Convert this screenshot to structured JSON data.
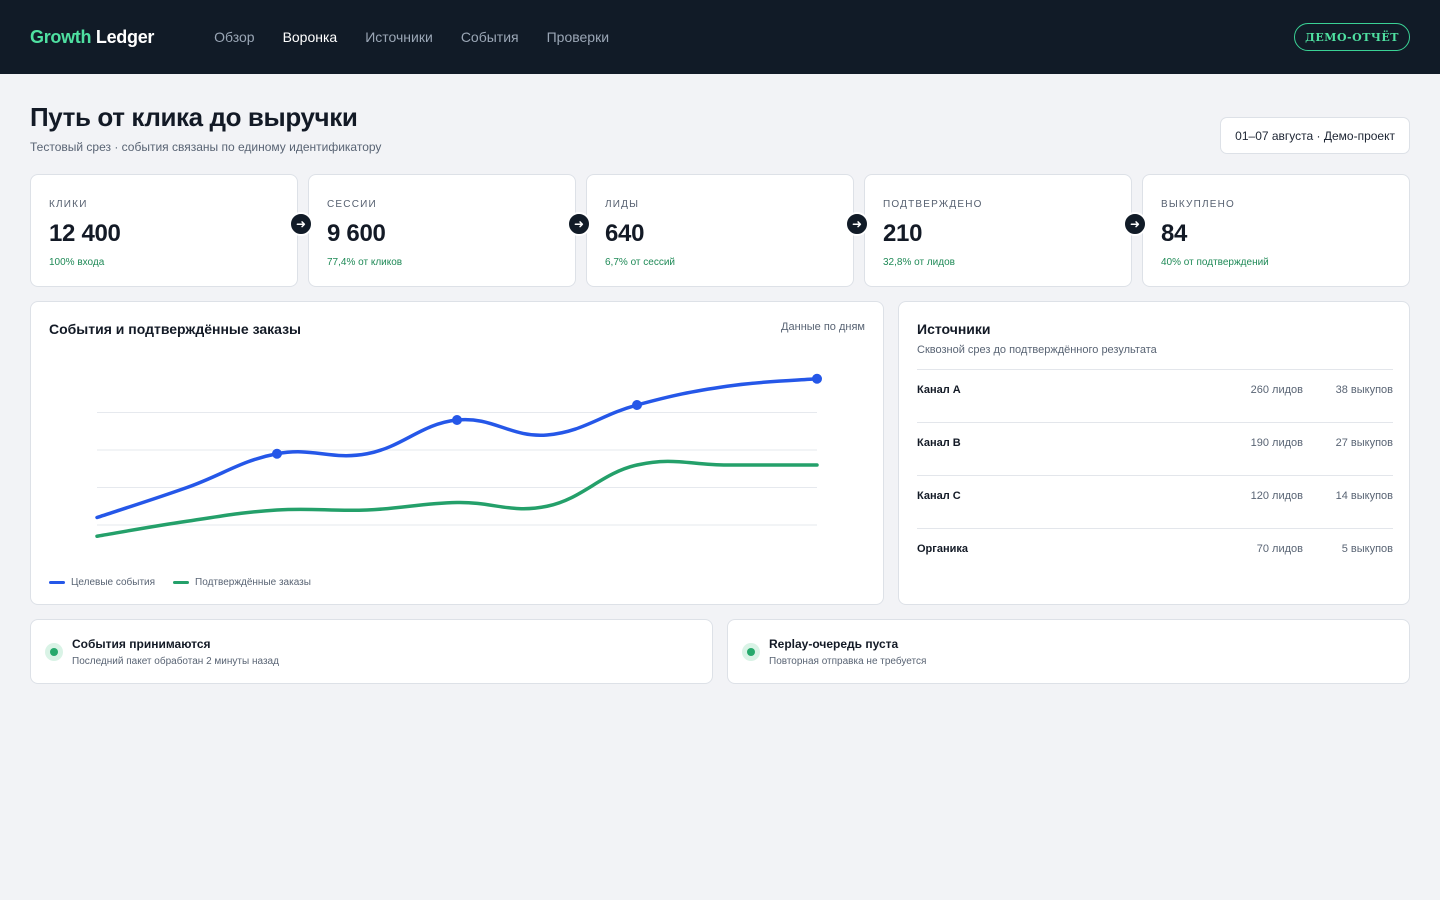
{
  "header": {
    "logo_part1": "Growth",
    "logo_part2": "Ledger",
    "nav": [
      {
        "label": "Обзор",
        "active": false
      },
      {
        "label": "Воронка",
        "active": true
      },
      {
        "label": "Источники",
        "active": false
      },
      {
        "label": "События",
        "active": false
      },
      {
        "label": "Проверки",
        "active": false
      }
    ],
    "demo_button": "ДЕМО-ОТЧЁТ"
  },
  "page": {
    "title": "Путь от клика до выручки",
    "subtitle": "Тестовый срез · события связаны по единому идентификатору",
    "date_range": "01–07 августа · Демо-проект"
  },
  "kpis": [
    {
      "label": "Клики",
      "value": "12 400",
      "note": "100% входа"
    },
    {
      "label": "Сессии",
      "value": "9 600",
      "note": "77,4% от кликов"
    },
    {
      "label": "Лиды",
      "value": "640",
      "note": "6,7% от сессий"
    },
    {
      "label": "Подтверждено",
      "value": "210",
      "note": "32,8% от лидов"
    },
    {
      "label": "Выкуплено",
      "value": "84",
      "note": "40% от подтверждений"
    }
  ],
  "arrow_icon": "arrow-right-icon",
  "chart": {
    "title": "События и подтверждённые заказы",
    "hint": "Данные по дням"
  },
  "chart_data": {
    "type": "line",
    "title": "События и подтверждённые заказы",
    "x": [
      1,
      2,
      3,
      4,
      5,
      6,
      7,
      8,
      9
    ],
    "xlabel": "",
    "ylabel": "",
    "ylim": [
      0,
      4
    ],
    "grid": true,
    "legend": "bottom-left",
    "series": [
      {
        "name": "Целевые события",
        "color": "#2557e8",
        "values": [
          0.2,
          1.0,
          1.9,
          1.9,
          2.8,
          2.4,
          3.2,
          3.7,
          3.9
        ],
        "markers": [
          3,
          5,
          7,
          9
        ]
      },
      {
        "name": "Подтверждённые заказы",
        "color": "#24a06a",
        "values": [
          -0.3,
          0.1,
          0.4,
          0.4,
          0.6,
          0.5,
          1.6,
          1.6,
          1.6
        ],
        "markers": []
      }
    ]
  },
  "sources": {
    "title": "Источники",
    "subtitle": "Сквозной срез до подтверждённого результата",
    "rows": [
      {
        "name": "Канал A",
        "leads": "260 лидов",
        "buys": "38 выкупов"
      },
      {
        "name": "Канал B",
        "leads": "190 лидов",
        "buys": "27 выкупов"
      },
      {
        "name": "Канал C",
        "leads": "120 лидов",
        "buys": "14 выкупов"
      },
      {
        "name": "Органика",
        "leads": "70 лидов",
        "buys": "5 выкупов"
      }
    ]
  },
  "statuses": [
    {
      "title": "События принимаются",
      "subtitle": "Последний пакет обработан 2 минуты назад",
      "color": "#26a96c"
    },
    {
      "title": "Replay-очередь пуста",
      "subtitle": "Повторная отправка не требуется",
      "color": "#26a96c"
    }
  ]
}
